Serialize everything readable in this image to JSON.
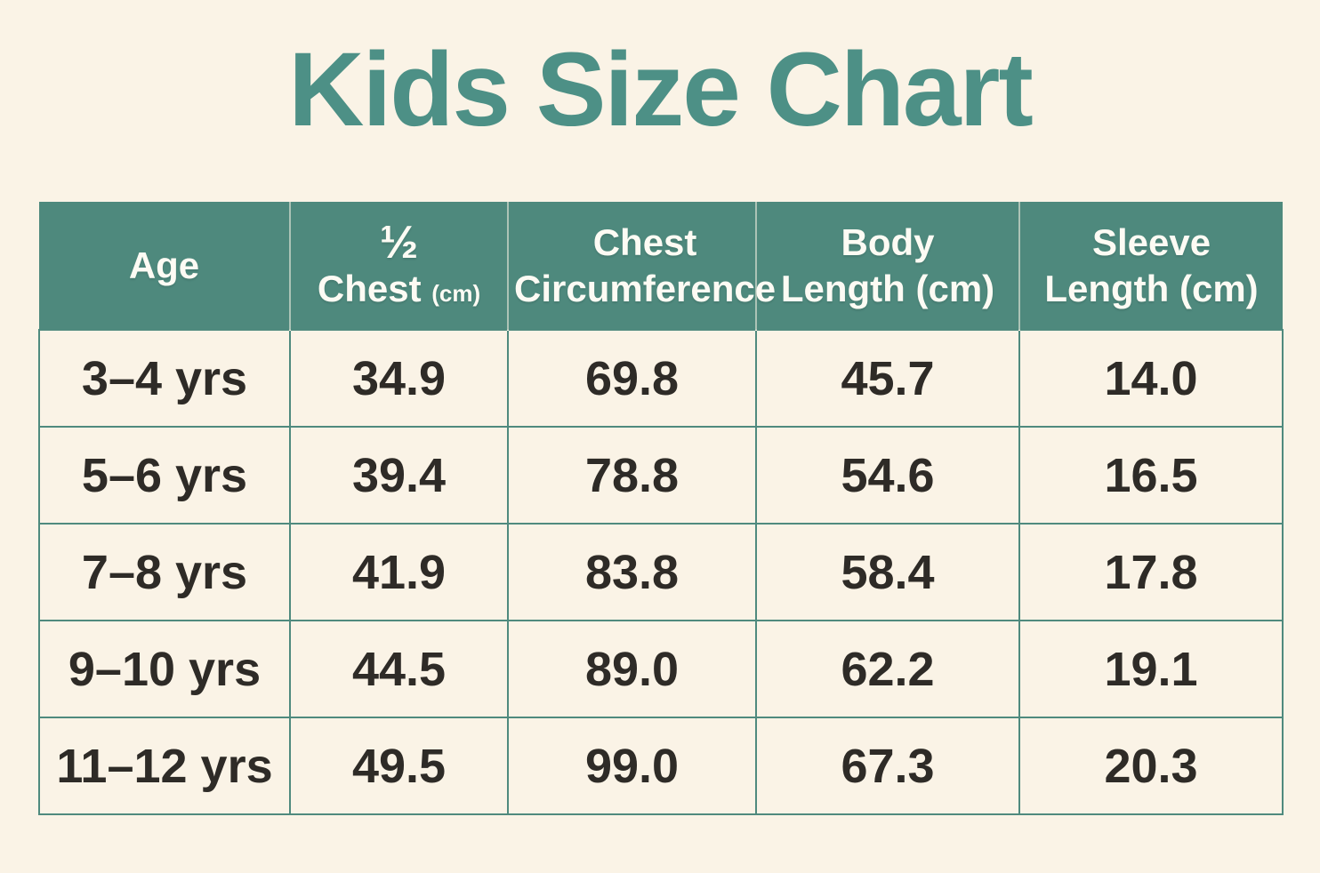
{
  "page": {
    "title": "Kids Size Chart",
    "background_color": "#FAF3E6",
    "title_color": "#4D9086"
  },
  "table": {
    "header_bg_color": "#4E897D",
    "header_text_color": "#FDFBF4",
    "grid_color": "#4F8A7E",
    "body_text_color": "#2E2B27",
    "header": {
      "col1": "Age",
      "col2": {
        "fraction": "½",
        "word": "Chest",
        "unit": "(cm)"
      },
      "col3": {
        "line1": "Chest",
        "line2": "Circumference"
      },
      "col4": {
        "line1": "Body",
        "line2": "Length (cm)"
      },
      "col5": {
        "line1": "Sleeve",
        "line2": "Length (cm)"
      }
    },
    "rows": [
      {
        "age": "3–4 yrs",
        "half_chest": "34.9",
        "chest_circumference": "69.8",
        "body_length": "45.7",
        "sleeve_length": "14.0"
      },
      {
        "age": "5–6 yrs",
        "half_chest": "39.4",
        "chest_circumference": "78.8",
        "body_length": "54.6",
        "sleeve_length": "16.5"
      },
      {
        "age": "7–8 yrs",
        "half_chest": "41.9",
        "chest_circumference": "83.8",
        "body_length": "58.4",
        "sleeve_length": "17.8"
      },
      {
        "age": "9–10 yrs",
        "half_chest": "44.5",
        "chest_circumference": "89.0",
        "body_length": "62.2",
        "sleeve_length": "19.1"
      },
      {
        "age": "11–12 yrs",
        "half_chest": "49.5",
        "chest_circumference": "99.0",
        "body_length": "67.3",
        "sleeve_length": "20.3"
      }
    ]
  },
  "chart_data": {
    "type": "table",
    "title": "Kids Size Chart",
    "columns": [
      "Age",
      "½ Chest (cm)",
      "Chest Circumference",
      "Body Length (cm)",
      "Sleeve Length (cm)"
    ],
    "rows": [
      [
        "3–4 yrs",
        34.9,
        69.8,
        45.7,
        14.0
      ],
      [
        "5–6 yrs",
        39.4,
        78.8,
        54.6,
        16.5
      ],
      [
        "7–8 yrs",
        41.9,
        83.8,
        58.4,
        17.8
      ],
      [
        "9–10 yrs",
        44.5,
        89.0,
        62.2,
        19.1
      ],
      [
        "11–12 yrs",
        49.5,
        99.0,
        67.3,
        20.3
      ]
    ]
  }
}
